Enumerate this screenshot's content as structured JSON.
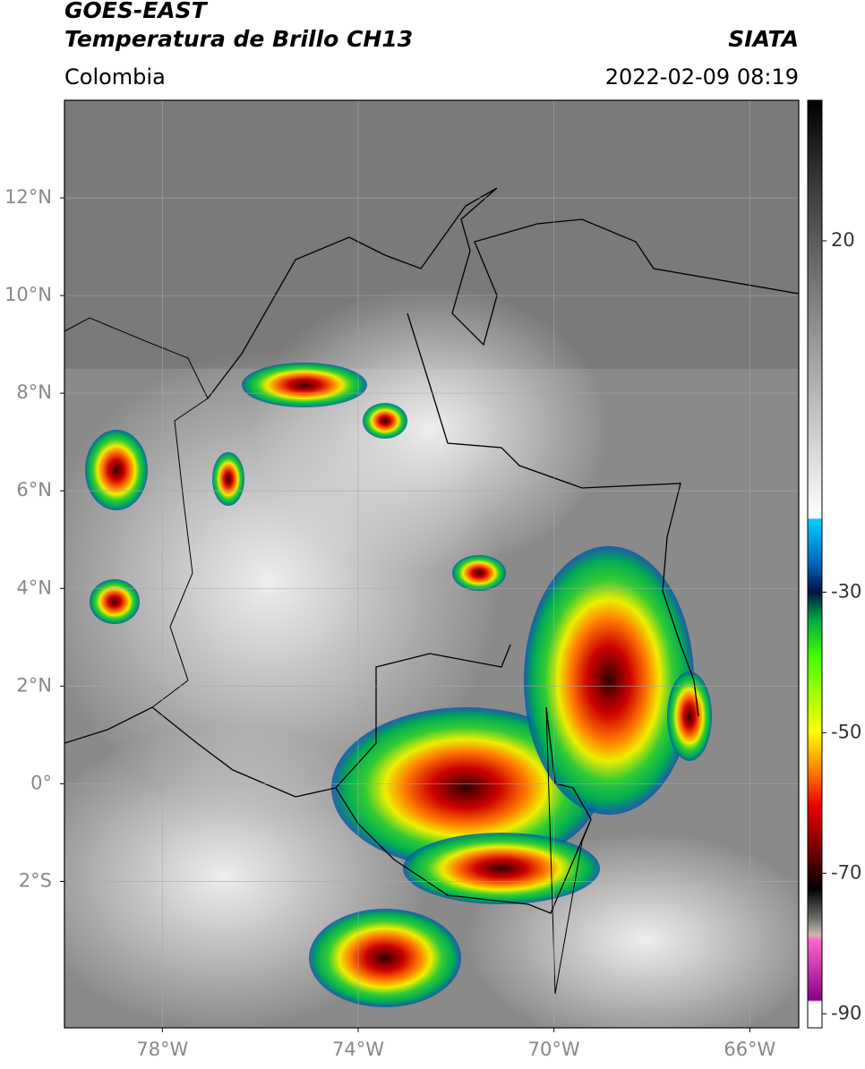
{
  "header": {
    "satellite": "GOES-EAST",
    "product": "Temperatura de Brillo CH13",
    "source": "SIATA",
    "region": "Colombia",
    "datetime": "2022-02-09 08:19"
  },
  "map": {
    "xlim": [
      -80,
      -65
    ],
    "ylim": [
      -5,
      14
    ],
    "xticks": [
      {
        "value": -78,
        "label": "78°W"
      },
      {
        "value": -74,
        "label": "74°W"
      },
      {
        "value": -70,
        "label": "70°W"
      },
      {
        "value": -66,
        "label": "66°W"
      }
    ],
    "yticks": [
      {
        "value": 12,
        "label": "12°N"
      },
      {
        "value": 10,
        "label": "10°N"
      },
      {
        "value": 8,
        "label": "8°N"
      },
      {
        "value": 6,
        "label": "6°N"
      },
      {
        "value": 4,
        "label": "4°N"
      },
      {
        "value": 2,
        "label": "2°N"
      },
      {
        "value": 0,
        "label": "0°"
      },
      {
        "value": -2,
        "label": "2°S"
      }
    ],
    "grid": true
  },
  "colorbar": {
    "lim": [
      40,
      -92
    ],
    "ticks": [
      20,
      -30,
      -50,
      -70,
      -90
    ]
  }
}
